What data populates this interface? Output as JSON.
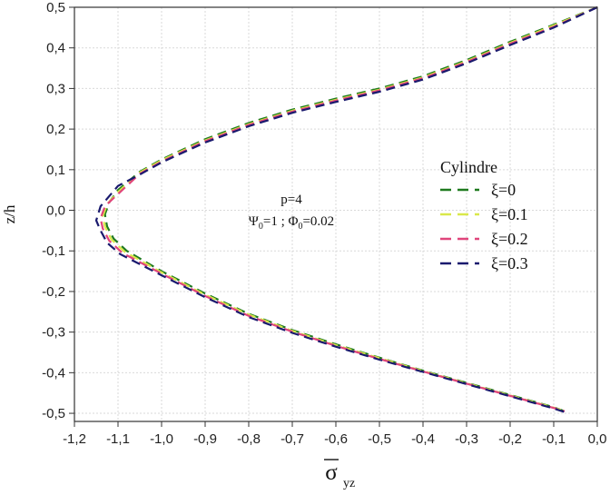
{
  "chart_data": {
    "type": "line",
    "title": "",
    "xlabel": "σ̅yz",
    "xlabel_main": "σ",
    "xlabel_sub": "yz",
    "ylabel": "z/h",
    "xlim": [
      -1.2,
      0.0
    ],
    "ylim": [
      -0.52,
      0.5
    ],
    "xticks": [
      -1.2,
      -1.1,
      -1.0,
      -0.9,
      -0.8,
      -0.7,
      -0.6,
      -0.5,
      -0.4,
      -0.3,
      -0.2,
      -0.1,
      0.0
    ],
    "yticks": [
      -0.5,
      -0.4,
      -0.3,
      -0.2,
      -0.1,
      0.0,
      0.1,
      0.2,
      0.3,
      0.4,
      0.5
    ],
    "xtick_labels": [
      "-1,2",
      "-1,1",
      "-1,0",
      "-0,9",
      "-0,8",
      "-0,7",
      "-0,6",
      "-0,5",
      "-0,4",
      "-0,3",
      "-0,2",
      "-0,1",
      "0,0"
    ],
    "ytick_labels": [
      "-0,5",
      "-0,4",
      "-0,3",
      "-0,2",
      "-0,1",
      "0,0",
      "0,1",
      "0,2",
      "0,3",
      "0,4",
      "0,5"
    ],
    "grid": true,
    "legend_title": "Cylindre",
    "legend_position": "right",
    "annotation": {
      "line1": "p=4",
      "line2_parts": [
        "Ψ",
        "0",
        "=1 ; Φ",
        "0",
        "=0.02"
      ]
    },
    "series": [
      {
        "name": "ξ=0",
        "color": "#1f7a1f",
        "points": [
          [
            0.0,
            0.5
          ],
          [
            -0.1,
            0.457
          ],
          [
            -0.2,
            0.415
          ],
          [
            -0.3,
            0.37
          ],
          [
            -0.4,
            0.33
          ],
          [
            -0.5,
            0.3
          ],
          [
            -0.6,
            0.275
          ],
          [
            -0.7,
            0.248
          ],
          [
            -0.8,
            0.215
          ],
          [
            -0.9,
            0.175
          ],
          [
            -1.0,
            0.125
          ],
          [
            -1.05,
            0.095
          ],
          [
            -1.1,
            0.05
          ],
          [
            -1.12,
            0.02
          ],
          [
            -1.13,
            -0.01
          ],
          [
            -1.125,
            -0.04
          ],
          [
            -1.11,
            -0.07
          ],
          [
            -1.08,
            -0.1
          ],
          [
            -1.0,
            -0.15
          ],
          [
            -0.9,
            -0.205
          ],
          [
            -0.8,
            -0.255
          ],
          [
            -0.7,
            -0.295
          ],
          [
            -0.6,
            -0.33
          ],
          [
            -0.5,
            -0.363
          ],
          [
            -0.4,
            -0.395
          ],
          [
            -0.3,
            -0.425
          ],
          [
            -0.2,
            -0.455
          ],
          [
            -0.1,
            -0.485
          ],
          [
            -0.075,
            -0.495
          ]
        ]
      },
      {
        "name": "ξ=0.1",
        "color": "#d9e84a",
        "points": [
          [
            0.0,
            0.5
          ],
          [
            -0.1,
            0.455
          ],
          [
            -0.2,
            0.412
          ],
          [
            -0.3,
            0.367
          ],
          [
            -0.4,
            0.327
          ],
          [
            -0.5,
            0.297
          ],
          [
            -0.6,
            0.272
          ],
          [
            -0.7,
            0.245
          ],
          [
            -0.8,
            0.212
          ],
          [
            -0.9,
            0.172
          ],
          [
            -1.0,
            0.123
          ],
          [
            -1.05,
            0.093
          ],
          [
            -1.1,
            0.045
          ],
          [
            -1.125,
            0.015
          ],
          [
            -1.135,
            -0.015
          ],
          [
            -1.13,
            -0.04
          ],
          [
            -1.115,
            -0.072
          ],
          [
            -1.085,
            -0.102
          ],
          [
            -1.0,
            -0.153
          ],
          [
            -0.9,
            -0.208
          ],
          [
            -0.8,
            -0.257
          ],
          [
            -0.7,
            -0.297
          ],
          [
            -0.6,
            -0.332
          ],
          [
            -0.5,
            -0.364
          ],
          [
            -0.4,
            -0.396
          ],
          [
            -0.3,
            -0.426
          ],
          [
            -0.2,
            -0.456
          ],
          [
            -0.1,
            -0.486
          ],
          [
            -0.075,
            -0.495
          ]
        ]
      },
      {
        "name": "ξ=0.2",
        "color": "#e0457b",
        "points": [
          [
            0.0,
            0.5
          ],
          [
            -0.1,
            0.452
          ],
          [
            -0.2,
            0.41
          ],
          [
            -0.3,
            0.365
          ],
          [
            -0.4,
            0.325
          ],
          [
            -0.5,
            0.295
          ],
          [
            -0.6,
            0.27
          ],
          [
            -0.7,
            0.243
          ],
          [
            -0.8,
            0.21
          ],
          [
            -0.9,
            0.17
          ],
          [
            -1.0,
            0.12
          ],
          [
            -1.05,
            0.09
          ],
          [
            -1.1,
            0.04
          ],
          [
            -1.13,
            0.01
          ],
          [
            -1.14,
            -0.02
          ],
          [
            -1.135,
            -0.045
          ],
          [
            -1.12,
            -0.075
          ],
          [
            -1.09,
            -0.105
          ],
          [
            -1.0,
            -0.156
          ],
          [
            -0.9,
            -0.211
          ],
          [
            -0.8,
            -0.26
          ],
          [
            -0.7,
            -0.299
          ],
          [
            -0.6,
            -0.334
          ],
          [
            -0.5,
            -0.366
          ],
          [
            -0.4,
            -0.397
          ],
          [
            -0.3,
            -0.427
          ],
          [
            -0.2,
            -0.457
          ],
          [
            -0.1,
            -0.487
          ],
          [
            -0.075,
            -0.495
          ]
        ]
      },
      {
        "name": "ξ=0.3",
        "color": "#1a1a6e",
        "points": [
          [
            0.0,
            0.5
          ],
          [
            -0.1,
            0.45
          ],
          [
            -0.2,
            0.407
          ],
          [
            -0.3,
            0.362
          ],
          [
            -0.4,
            0.322
          ],
          [
            -0.5,
            0.292
          ],
          [
            -0.6,
            0.267
          ],
          [
            -0.7,
            0.24
          ],
          [
            -0.8,
            0.207
          ],
          [
            -0.9,
            0.167
          ],
          [
            -1.0,
            0.118
          ],
          [
            -1.05,
            0.088
          ],
          [
            -1.1,
            0.06
          ],
          [
            -1.14,
            0.01
          ],
          [
            -1.15,
            -0.025
          ],
          [
            -1.14,
            -0.05
          ],
          [
            -1.125,
            -0.08
          ],
          [
            -1.095,
            -0.108
          ],
          [
            -1.0,
            -0.16
          ],
          [
            -0.9,
            -0.214
          ],
          [
            -0.8,
            -0.263
          ],
          [
            -0.7,
            -0.302
          ],
          [
            -0.6,
            -0.336
          ],
          [
            -0.5,
            -0.368
          ],
          [
            -0.4,
            -0.398
          ],
          [
            -0.3,
            -0.428
          ],
          [
            -0.2,
            -0.458
          ],
          [
            -0.1,
            -0.488
          ],
          [
            -0.075,
            -0.497
          ]
        ]
      }
    ]
  }
}
